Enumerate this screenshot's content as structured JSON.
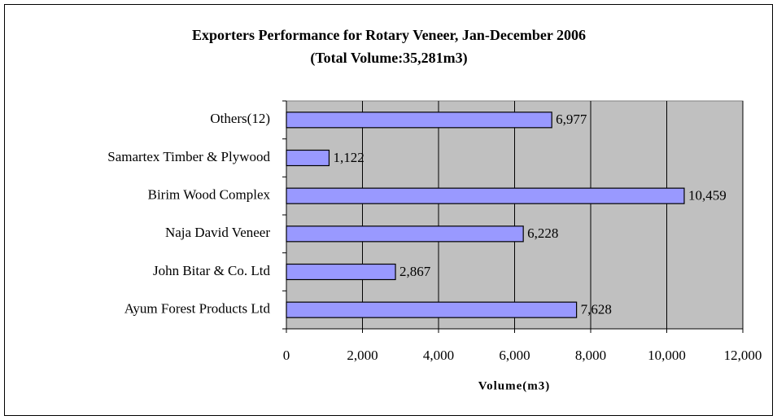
{
  "chart_data": {
    "type": "barh",
    "title": "Exporters Performance for Rotary Veneer, Jan-December 2006",
    "subtitle": "(Total Volume:35,281m3)",
    "x_label": "Volume(m3)",
    "categories": [
      "Others(12)",
      "Samartex Timber & Plywood",
      "Birim Wood Complex",
      "Naja David Veneer",
      "John Bitar & Co. Ltd",
      "Ayum Forest Products Ltd"
    ],
    "values": [
      6977,
      1122,
      10459,
      6228,
      2867,
      7628
    ],
    "value_labels": [
      "6,977",
      "1,122",
      "10,459",
      "6,228",
      "2,867",
      "7,628"
    ],
    "color": "#9999ff",
    "xlim": [
      0,
      12000
    ],
    "xticks": [
      0,
      {
        "value": 2000,
        "label": "2,000"
      },
      {
        "value": 4000,
        "label": "4,000"
      },
      {
        "value": 6000,
        "label": "6,000"
      },
      {
        "value": 8000,
        "label": "8,000"
      },
      {
        "value": 10000,
        "label": "10,000"
      },
      {
        "value": 12000,
        "label": "12,000"
      }
    ],
    "grid": true
  }
}
